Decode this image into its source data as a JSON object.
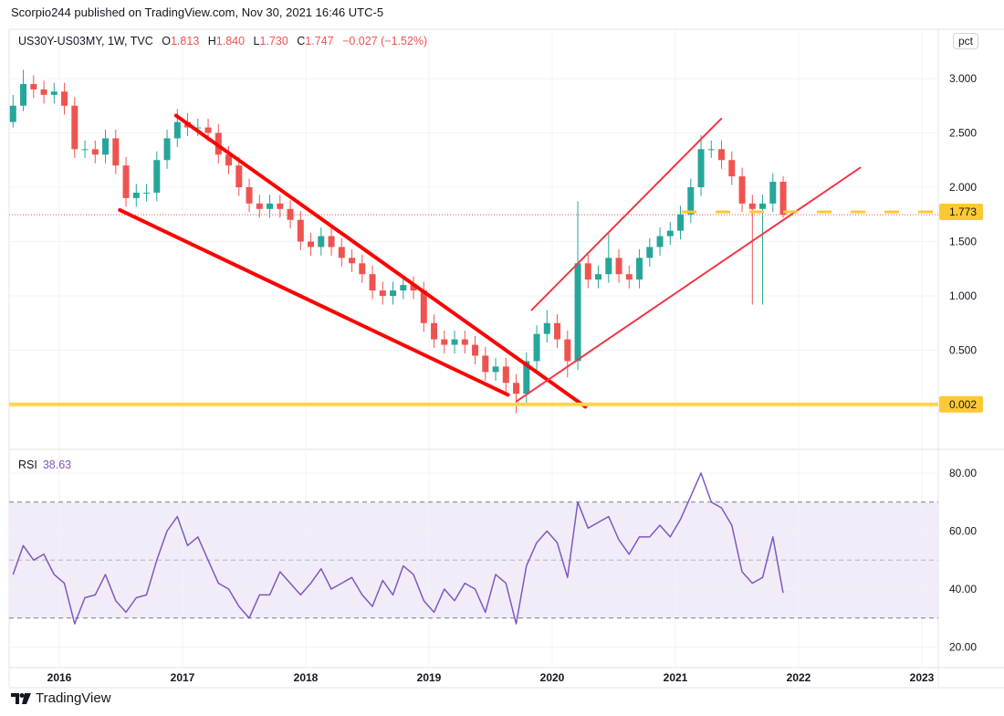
{
  "header": {
    "publish_text": "Scorpio244 published on TradingView.com, Nov 30, 2021 16:46 UTC-5"
  },
  "legend": {
    "symbol": "US30Y-US03MY, 1W, TVC",
    "o_label": "O",
    "o": "1.813",
    "h_label": "H",
    "h": "1.840",
    "l_label": "L",
    "l": "1.730",
    "c_label": "C",
    "c": "1.747",
    "change": "−0.027 (−1.52%)"
  },
  "scale_button": "pct",
  "rsi_legend": {
    "label": "RSI",
    "value": "38.63"
  },
  "footer": {
    "logo_text": "TradingView"
  },
  "colors": {
    "up": "#26a69a",
    "down": "#ef5350",
    "trendline": "#ff0000",
    "channel": "#f23645",
    "horizontal": "#ffd54f",
    "label_bg": "#ffc933",
    "rsi_line": "#7e57c2",
    "rsi_band": "#ede7f6"
  },
  "chart_data": [
    {
      "type": "candlestick",
      "title": "US30Y-US03MY, 1W, TVC",
      "ylabel": "pct",
      "yticks": [
        "3.000",
        "2.500",
        "2.000",
        "1.500",
        "1.000",
        "0.500"
      ],
      "ylim": [
        -0.1,
        3.1
      ],
      "xticks": [
        "2016",
        "2017",
        "2018",
        "2019",
        "2020",
        "2021",
        "2022",
        "2023"
      ],
      "grid": true,
      "columns": [
        "date",
        "open",
        "high",
        "low",
        "close"
      ],
      "ohlc": [
        [
          "2015-08",
          2.6,
          2.85,
          2.55,
          2.75
        ],
        [
          "2015-09",
          2.75,
          3.08,
          2.7,
          2.95
        ],
        [
          "2015-10",
          2.95,
          3.03,
          2.82,
          2.9
        ],
        [
          "2015-11",
          2.9,
          2.98,
          2.77,
          2.85
        ],
        [
          "2015-12",
          2.85,
          2.96,
          2.77,
          2.88
        ],
        [
          "2016-01",
          2.88,
          2.96,
          2.67,
          2.75
        ],
        [
          "2016-02",
          2.75,
          2.83,
          2.27,
          2.35
        ],
        [
          "2016-03",
          2.35,
          2.43,
          2.27,
          2.35
        ],
        [
          "2016-04",
          2.35,
          2.43,
          2.22,
          2.3
        ],
        [
          "2016-05",
          2.3,
          2.53,
          2.22,
          2.45
        ],
        [
          "2016-06",
          2.45,
          2.53,
          2.12,
          2.2
        ],
        [
          "2016-07",
          2.2,
          2.28,
          1.82,
          1.9
        ],
        [
          "2016-08",
          1.9,
          2.03,
          1.82,
          1.95
        ],
        [
          "2016-09",
          1.95,
          2.03,
          1.87,
          1.95
        ],
        [
          "2016-10",
          1.95,
          2.33,
          1.87,
          2.25
        ],
        [
          "2016-11",
          2.25,
          2.53,
          2.17,
          2.45
        ],
        [
          "2016-12",
          2.45,
          2.72,
          2.37,
          2.6
        ],
        [
          "2017-01",
          2.6,
          2.68,
          2.47,
          2.55
        ],
        [
          "2017-02",
          2.55,
          2.63,
          2.47,
          2.55
        ],
        [
          "2017-03",
          2.55,
          2.63,
          2.42,
          2.5
        ],
        [
          "2017-04",
          2.5,
          2.58,
          2.22,
          2.3
        ],
        [
          "2017-05",
          2.3,
          2.38,
          2.12,
          2.2
        ],
        [
          "2017-06",
          2.2,
          2.28,
          1.92,
          2.0
        ],
        [
          "2017-07",
          2.0,
          2.08,
          1.77,
          1.85
        ],
        [
          "2017-08",
          1.85,
          1.93,
          1.72,
          1.8
        ],
        [
          "2017-09",
          1.8,
          1.93,
          1.72,
          1.85
        ],
        [
          "2017-10",
          1.85,
          1.93,
          1.72,
          1.8
        ],
        [
          "2017-11",
          1.8,
          1.88,
          1.62,
          1.7
        ],
        [
          "2017-12",
          1.7,
          1.78,
          1.42,
          1.5
        ],
        [
          "2018-01",
          1.5,
          1.58,
          1.37,
          1.45
        ],
        [
          "2018-02",
          1.45,
          1.63,
          1.37,
          1.55
        ],
        [
          "2018-03",
          1.55,
          1.63,
          1.37,
          1.45
        ],
        [
          "2018-04",
          1.45,
          1.53,
          1.27,
          1.35
        ],
        [
          "2018-05",
          1.35,
          1.43,
          1.22,
          1.3
        ],
        [
          "2018-06",
          1.3,
          1.38,
          1.12,
          1.2
        ],
        [
          "2018-07",
          1.2,
          1.28,
          0.97,
          1.05
        ],
        [
          "2018-08",
          1.05,
          1.13,
          0.92,
          1.0
        ],
        [
          "2018-09",
          1.0,
          1.13,
          0.92,
          1.05
        ],
        [
          "2018-10",
          1.05,
          1.18,
          0.97,
          1.1
        ],
        [
          "2018-11",
          1.1,
          1.18,
          0.97,
          1.05
        ],
        [
          "2018-12",
          1.05,
          1.13,
          0.67,
          0.75
        ],
        [
          "2019-01",
          0.75,
          0.83,
          0.52,
          0.6
        ],
        [
          "2019-02",
          0.6,
          0.68,
          0.47,
          0.55
        ],
        [
          "2019-03",
          0.55,
          0.68,
          0.47,
          0.6
        ],
        [
          "2019-04",
          0.6,
          0.68,
          0.47,
          0.55
        ],
        [
          "2019-05",
          0.55,
          0.63,
          0.37,
          0.45
        ],
        [
          "2019-06",
          0.45,
          0.53,
          0.22,
          0.3
        ],
        [
          "2019-07",
          0.3,
          0.43,
          0.22,
          0.35
        ],
        [
          "2019-08",
          0.35,
          0.43,
          0.12,
          0.2
        ],
        [
          "2019-09",
          0.2,
          0.28,
          -0.08,
          0.1
        ],
        [
          "2019-10",
          0.1,
          0.48,
          0.02,
          0.4
        ],
        [
          "2019-11",
          0.4,
          0.73,
          0.32,
          0.65
        ],
        [
          "2019-12",
          0.65,
          0.87,
          0.57,
          0.75
        ],
        [
          "2020-01",
          0.75,
          0.83,
          0.52,
          0.6
        ],
        [
          "2020-02",
          0.6,
          0.68,
          0.25,
          0.4
        ],
        [
          "2020-03",
          0.4,
          1.87,
          0.32,
          1.3
        ],
        [
          "2020-04",
          1.3,
          1.38,
          1.07,
          1.15
        ],
        [
          "2020-05",
          1.15,
          1.28,
          1.07,
          1.2
        ],
        [
          "2020-06",
          1.2,
          1.58,
          1.12,
          1.35
        ],
        [
          "2020-07",
          1.35,
          1.43,
          1.12,
          1.2
        ],
        [
          "2020-08",
          1.2,
          1.28,
          1.07,
          1.15
        ],
        [
          "2020-09",
          1.15,
          1.43,
          1.07,
          1.35
        ],
        [
          "2020-10",
          1.35,
          1.53,
          1.27,
          1.45
        ],
        [
          "2020-11",
          1.45,
          1.63,
          1.37,
          1.55
        ],
        [
          "2020-12",
          1.55,
          1.68,
          1.47,
          1.6
        ],
        [
          "2021-01",
          1.6,
          1.83,
          1.52,
          1.75
        ],
        [
          "2021-02",
          1.75,
          2.08,
          1.67,
          2.0
        ],
        [
          "2021-03",
          2.0,
          2.48,
          1.92,
          2.35
        ],
        [
          "2021-04",
          2.35,
          2.43,
          2.27,
          2.35
        ],
        [
          "2021-05",
          2.35,
          2.43,
          2.17,
          2.25
        ],
        [
          "2021-06",
          2.25,
          2.33,
          2.02,
          2.1
        ],
        [
          "2021-07",
          2.1,
          2.18,
          1.77,
          1.85
        ],
        [
          "2021-08",
          1.85,
          1.93,
          0.92,
          1.8
        ],
        [
          "2021-09",
          1.8,
          1.93,
          0.92,
          1.85
        ],
        [
          "2021-10",
          1.85,
          2.13,
          1.77,
          2.05
        ],
        [
          "2021-11",
          2.05,
          2.1,
          1.72,
          1.747
        ]
      ],
      "last_price": 1.747,
      "price_labels": [
        {
          "value": 1.773,
          "text": "1.773"
        },
        {
          "value": 0.002,
          "text": "0.002"
        }
      ],
      "drawings": [
        {
          "kind": "trendline",
          "style": "thick",
          "from": [
            "2016-12-12",
            2.66
          ],
          "to": [
            "2020-04-08",
            -0.02
          ]
        },
        {
          "kind": "trendline",
          "style": "thick",
          "from": [
            "2016-06-28",
            1.79
          ],
          "to": [
            "2019-08-22",
            0.09
          ]
        },
        {
          "kind": "trendline",
          "style": "thin",
          "from": [
            "2019-11-01",
            0.87
          ],
          "to": [
            "2021-05-15",
            2.63
          ]
        },
        {
          "kind": "trendline",
          "style": "thin",
          "from": [
            "2019-09-17",
            0.03
          ],
          "to": [
            "2022-07-01",
            2.18
          ]
        },
        {
          "kind": "horizontal",
          "style": "solid",
          "value": 0.002
        },
        {
          "kind": "horizontal_ray",
          "style": "dashed",
          "value": 1.773,
          "from": "2021-01-20"
        }
      ]
    },
    {
      "type": "line",
      "title": "RSI",
      "yticks": [
        "80.00",
        "60.00",
        "40.00",
        "20.00"
      ],
      "ylim": [
        15,
        86
      ],
      "levels": [
        70,
        50,
        30
      ],
      "band": [
        30,
        70
      ],
      "x": [
        "2015-08",
        "2015-09",
        "2015-10",
        "2015-11",
        "2015-12",
        "2016-01",
        "2016-02",
        "2016-03",
        "2016-04",
        "2016-05",
        "2016-06",
        "2016-07",
        "2016-08",
        "2016-09",
        "2016-10",
        "2016-11",
        "2016-12",
        "2017-01",
        "2017-02",
        "2017-03",
        "2017-04",
        "2017-05",
        "2017-06",
        "2017-07",
        "2017-08",
        "2017-09",
        "2017-10",
        "2017-11",
        "2017-12",
        "2018-01",
        "2018-02",
        "2018-03",
        "2018-04",
        "2018-05",
        "2018-06",
        "2018-07",
        "2018-08",
        "2018-09",
        "2018-10",
        "2018-11",
        "2018-12",
        "2019-01",
        "2019-02",
        "2019-03",
        "2019-04",
        "2019-05",
        "2019-06",
        "2019-07",
        "2019-08",
        "2019-09",
        "2019-10",
        "2019-11",
        "2019-12",
        "2020-01",
        "2020-02",
        "2020-03",
        "2020-04",
        "2020-05",
        "2020-06",
        "2020-07",
        "2020-08",
        "2020-09",
        "2020-10",
        "2020-11",
        "2020-12",
        "2021-01",
        "2021-02",
        "2021-03",
        "2021-04",
        "2021-05",
        "2021-06",
        "2021-07",
        "2021-08",
        "2021-09",
        "2021-10",
        "2021-11"
      ],
      "values": [
        45,
        55,
        50,
        52,
        45,
        42,
        28,
        37,
        38,
        45,
        36,
        32,
        37,
        38,
        50,
        60,
        65,
        55,
        58,
        50,
        42,
        40,
        34,
        30,
        38,
        38,
        46,
        42,
        38,
        42,
        47,
        40,
        42,
        44,
        38,
        34,
        43,
        38,
        48,
        45,
        36,
        32,
        40,
        36,
        42,
        40,
        32,
        45,
        42,
        28,
        48,
        56,
        60,
        56,
        44,
        70,
        61,
        63,
        65,
        57,
        52,
        58,
        58,
        62,
        58,
        64,
        72,
        80,
        70,
        68,
        62,
        46,
        42,
        44,
        58,
        38.63
      ]
    }
  ]
}
